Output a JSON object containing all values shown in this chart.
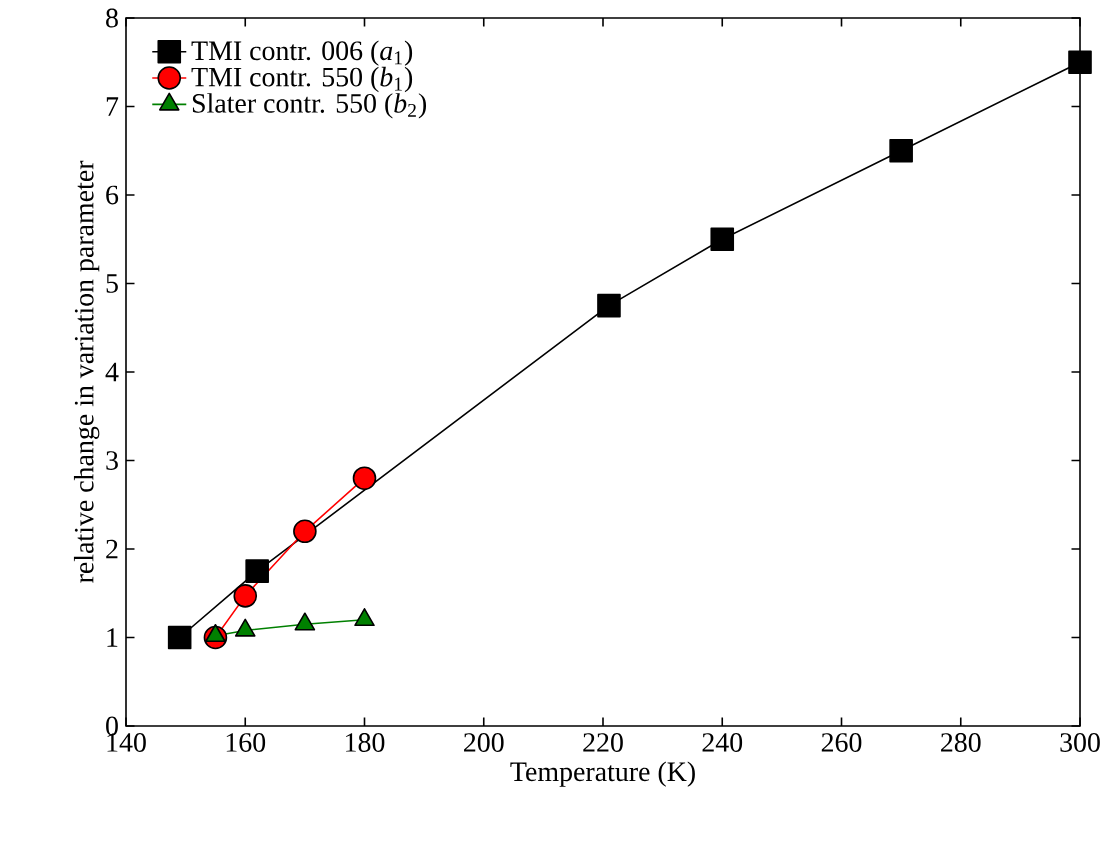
{
  "chart_data": {
    "type": "line",
    "xlabel": "Temperature (K)",
    "ylabel": "relative change in variation parameter",
    "xlim": [
      140,
      300
    ],
    "ylim": [
      0,
      8
    ],
    "xticks": [
      140,
      160,
      180,
      200,
      220,
      240,
      260,
      280,
      300
    ],
    "yticks": [
      0,
      1,
      2,
      3,
      4,
      5,
      6,
      7,
      8
    ],
    "legend": "top left",
    "grid": false,
    "series": [
      {
        "name": "TMI contr. 006 (*a*$_{1}$)",
        "color": "#000000",
        "marker": "square",
        "x": [
          149,
          162,
          221,
          240,
          270,
          300
        ],
        "values": [
          1.0,
          1.75,
          4.75,
          5.5,
          6.5,
          7.5
        ]
      },
      {
        "name": "TMI contr. 550 (*b*$_{1}$)",
        "color": "#ff0000",
        "marker": "circle",
        "x": [
          155,
          160,
          170,
          180
        ],
        "values": [
          1.0,
          1.47,
          2.2,
          2.8
        ]
      },
      {
        "name": "Slater contr. 550 (*b*$_{2}$)",
        "color": "#008000",
        "marker": "triangle",
        "x": [
          155,
          160,
          170,
          180
        ],
        "values": [
          1.02,
          1.08,
          1.15,
          1.2
        ]
      }
    ]
  }
}
